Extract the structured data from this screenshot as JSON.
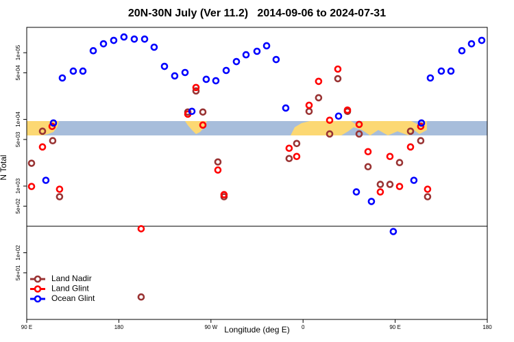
{
  "chart_data": {
    "type": "scatter",
    "title": "20N-30N July (Ver 11.2)   2014-09-06 to 2024-07-31",
    "xlabel": "Longitude (deg E)",
    "ylabel": "N Total",
    "log_y": true,
    "xlim": [
      90,
      540
    ],
    "ylim": [
      10,
      240000
    ],
    "xticks": [
      {
        "value": 90,
        "label": "90 E"
      },
      {
        "value": 180,
        "label": "180"
      },
      {
        "value": 270,
        "label": "90 W"
      },
      {
        "value": 360,
        "label": "0"
      },
      {
        "value": 450,
        "label": "90 E"
      },
      {
        "value": 540,
        "label": "180"
      }
    ],
    "yticks": [
      {
        "value": 100000,
        "label": "1e+05"
      },
      {
        "value": 50000,
        "label": "5e+04"
      },
      {
        "value": 10000,
        "label": "1e+04"
      },
      {
        "value": 5000,
        "label": "5e+03"
      },
      {
        "value": 1000,
        "label": "1e+03"
      },
      {
        "value": 500,
        "label": "5e+02"
      },
      {
        "value": 100,
        "label": "1e+02"
      },
      {
        "value": 50,
        "label": "5e+01"
      }
    ],
    "hline": 250,
    "legend_position": "bottom-left",
    "series": [
      {
        "name": "Land Nadir",
        "color": "#993333",
        "x": [
          94.7,
          105.4,
          115.4,
          122.1,
          201.8,
          247.4,
          255.4,
          262.1,
          276.8,
          282.8,
          346.4,
          353.8,
          365.9,
          375.2,
          386,
          394,
          403.4,
          414.8,
          423.5,
          435.5,
          444.9,
          454.3,
          465,
          475,
          481.7
        ],
        "values": [
          2200,
          6650,
          4790,
          692,
          21.7,
          12900,
          26700,
          12900,
          2300,
          692,
          2590,
          4350,
          13200,
          21100,
          6050,
          40800,
          13200,
          6050,
          1950,
          1060,
          1060,
          2250,
          6650,
          4790,
          692
        ]
      },
      {
        "name": "Land Glint",
        "color": "#ff0000",
        "x": [
          94.7,
          105.4,
          114.8,
          122.1,
          201.8,
          247.4,
          255.4,
          262.1,
          276.8,
          282.8,
          346.4,
          353.8,
          365.9,
          375.2,
          386,
          394,
          403.4,
          414.8,
          423.5,
          435.5,
          444.9,
          454.3,
          465,
          475,
          481.7
        ],
        "values": [
          986,
          3860,
          7850,
          897,
          229,
          12000,
          30100,
          8220,
          1740,
          743,
          3690,
          2780,
          16300,
          37200,
          9710,
          56800,
          13800,
          8410,
          3280,
          817,
          2780,
          986,
          3860,
          7850,
          897
        ]
      },
      {
        "name": "Ocean Glint",
        "color": "#0000ff",
        "x": [
          116.1,
          108.7,
          124.8,
          135.5,
          144.9,
          155,
          165,
          175,
          185,
          195.1,
          205.2,
          214.5,
          224.6,
          234.6,
          244.7,
          251.4,
          265.4,
          274.8,
          284.9,
          294.9,
          304.3,
          315,
          324.4,
          333.7,
          343.1,
          394.7,
          412.1,
          426.8,
          448.2,
          468.3,
          475.7,
          484.4,
          495.1,
          504.5,
          515.2,
          524.6,
          534.6
        ],
        "values": [
          8830,
          1220,
          41800,
          53000,
          53000,
          107000,
          136000,
          153000,
          172000,
          160000,
          160000,
          121000,
          62400,
          44900,
          50500,
          13200,
          39900,
          38000,
          54200,
          73600,
          93100,
          105000,
          127000,
          79000,
          14800,
          11200,
          817,
          588,
          208,
          1220,
          8830,
          41800,
          53000,
          53000,
          107000,
          136000,
          153000
        ]
      }
    ]
  }
}
